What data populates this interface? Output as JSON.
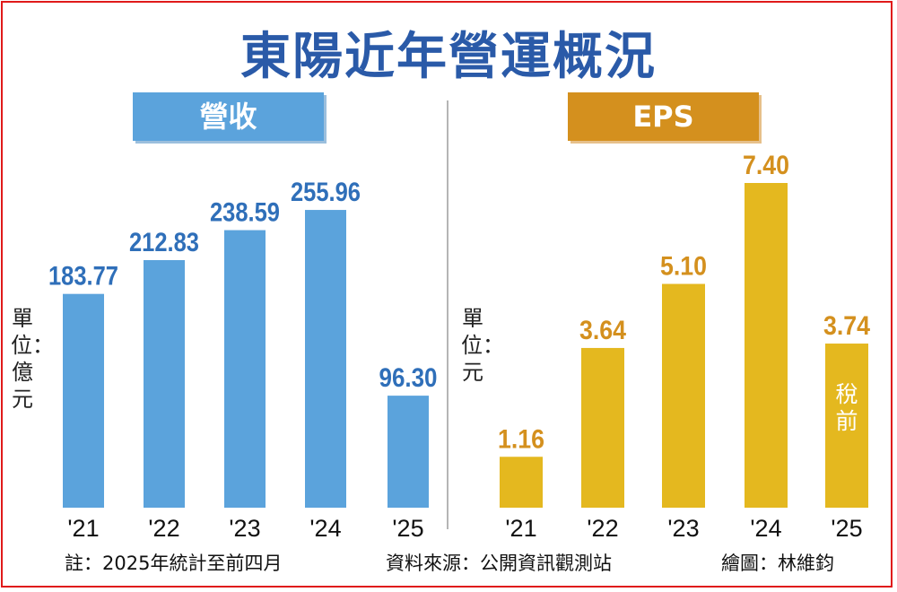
{
  "title": "東陽近年營運概況",
  "chart_data": [
    {
      "type": "bar",
      "title": "營收",
      "unit": "單位：億元",
      "categories": [
        "'21",
        "'22",
        "'23",
        "'24",
        "'25"
      ],
      "values": [
        183.77,
        212.83,
        238.59,
        255.96,
        96.3
      ],
      "value_labels": [
        "183.77",
        "212.83",
        "238.59",
        "255.96",
        "96.30"
      ],
      "bar_color": "#5ba3dc",
      "label_color": "#2f6fb9",
      "ylim": [
        0,
        256
      ]
    },
    {
      "type": "bar",
      "title": "EPS",
      "unit": "單位：元",
      "categories": [
        "'21",
        "'22",
        "'23",
        "'24",
        "'25"
      ],
      "values": [
        1.16,
        3.64,
        5.1,
        7.4,
        3.74
      ],
      "value_labels": [
        "1.16",
        "3.64",
        "5.10",
        "7.40",
        "3.74"
      ],
      "bar_color": "#e4b81f",
      "label_color": "#d4901e",
      "annotation": {
        "category": "'25",
        "text": "稅前",
        "color": "#ffffff"
      },
      "ylim": [
        0,
        7.4
      ]
    }
  ],
  "footer": {
    "note": "註：2025年統計至前四月",
    "source": "資料來源：公開資訊觀測站",
    "artist": "繪圖：林維鈞"
  },
  "colors": {
    "border": "#e01a1a",
    "title": "#2a5aa8",
    "eps_label_bg": "#d4901e",
    "rev_label_bg": "#5ba3dc"
  }
}
